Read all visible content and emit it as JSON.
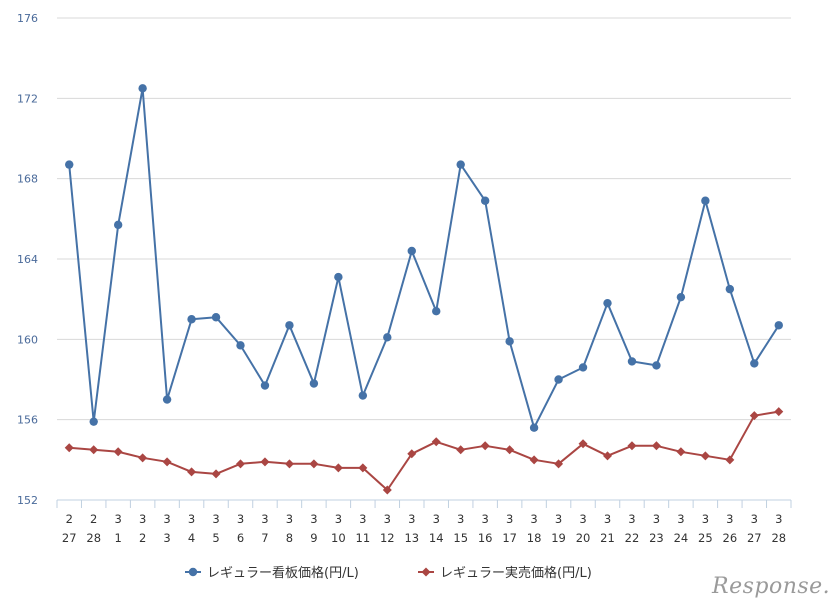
{
  "chart_data": {
    "type": "line",
    "categories": [
      [
        "2",
        "27"
      ],
      [
        "2",
        "28"
      ],
      [
        "3",
        "1"
      ],
      [
        "3",
        "2"
      ],
      [
        "3",
        "3"
      ],
      [
        "3",
        "4"
      ],
      [
        "3",
        "5"
      ],
      [
        "3",
        "6"
      ],
      [
        "3",
        "7"
      ],
      [
        "3",
        "8"
      ],
      [
        "3",
        "9"
      ],
      [
        "3",
        "10"
      ],
      [
        "3",
        "11"
      ],
      [
        "3",
        "12"
      ],
      [
        "3",
        "13"
      ],
      [
        "3",
        "14"
      ],
      [
        "3",
        "15"
      ],
      [
        "3",
        "16"
      ],
      [
        "3",
        "17"
      ],
      [
        "3",
        "18"
      ],
      [
        "3",
        "19"
      ],
      [
        "3",
        "20"
      ],
      [
        "3",
        "21"
      ],
      [
        "3",
        "22"
      ],
      [
        "3",
        "23"
      ],
      [
        "3",
        "24"
      ],
      [
        "3",
        "25"
      ],
      [
        "3",
        "26"
      ],
      [
        "3",
        "27"
      ],
      [
        "3",
        "28"
      ]
    ],
    "y_ticks": [
      152,
      156,
      160,
      164,
      168,
      172,
      176
    ],
    "ylim": [
      152,
      176
    ],
    "grid": true,
    "legend_position": "bottom",
    "series": [
      {
        "name": "レギュラー看板価格(円/L)",
        "color": "#4572a7",
        "marker": "circle",
        "values": [
          168.7,
          155.9,
          165.7,
          172.5,
          157.0,
          161.0,
          161.1,
          159.7,
          157.7,
          160.7,
          157.8,
          163.1,
          157.2,
          160.1,
          164.4,
          161.4,
          168.7,
          166.9,
          159.9,
          155.6,
          158.0,
          158.6,
          161.8,
          158.9,
          158.7,
          162.1,
          166.9,
          162.5,
          158.8,
          160.7
        ]
      },
      {
        "name": "レギュラー実売価格(円/L)",
        "color": "#aa4643",
        "marker": "diamond",
        "values": [
          154.6,
          154.5,
          154.4,
          154.1,
          153.9,
          153.4,
          153.3,
          153.8,
          153.9,
          153.8,
          153.8,
          153.6,
          153.6,
          152.5,
          154.3,
          154.9,
          154.5,
          154.7,
          154.5,
          154.0,
          153.8,
          154.8,
          154.2,
          154.7,
          154.7,
          154.4,
          154.2,
          154.0,
          156.2,
          156.4
        ]
      }
    ]
  },
  "watermark": "Response."
}
